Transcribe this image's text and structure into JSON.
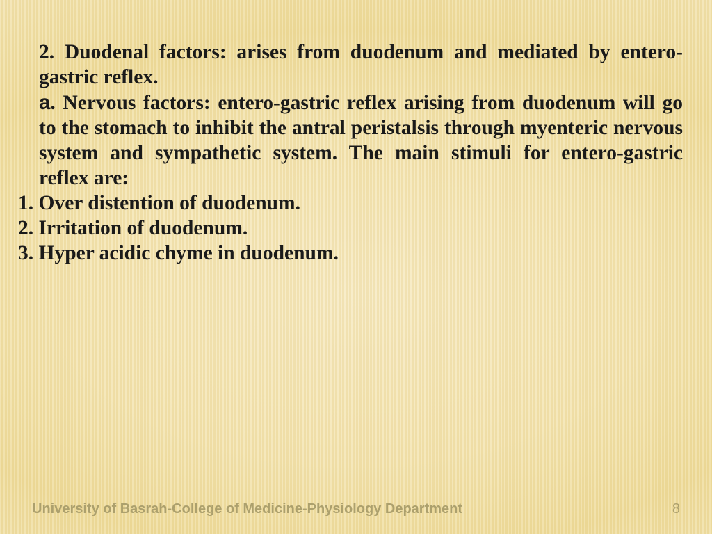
{
  "colors": {
    "text": "#1a1a1a",
    "footer": "#aca06d",
    "bg_light": "#faf2d6",
    "bg_mid": "#f3e3ad",
    "bg_deep": "#eedb98"
  },
  "typography": {
    "body_family": "Times New Roman",
    "body_size_pt": 22,
    "body_weight": "bold",
    "footer_family": "Arial",
    "footer_size_pt": 15,
    "footer_weight": "bold",
    "lead_letter_family": "Arial"
  },
  "body": {
    "heading": "2. Duodenal factors: arises from duodenum and mediated by entero-gastric reflex.",
    "sub_lead": "a",
    "sub_text": ". Nervous factors: entero-gastric reflex arising from duodenum will go to the stomach to inhibit the antral peristalsis through myenteric nervous system and sympathetic system. The main stimuli for entero-gastric reflex are:",
    "items": {
      "0": "1. Over distention of duodenum.",
      "1": "2. Irritation of duodenum.",
      "2": "3. Hyper acidic chyme in duodenum."
    }
  },
  "footer": {
    "text": "University of Basrah-College of Medicine-Physiology Department",
    "page": "8"
  }
}
